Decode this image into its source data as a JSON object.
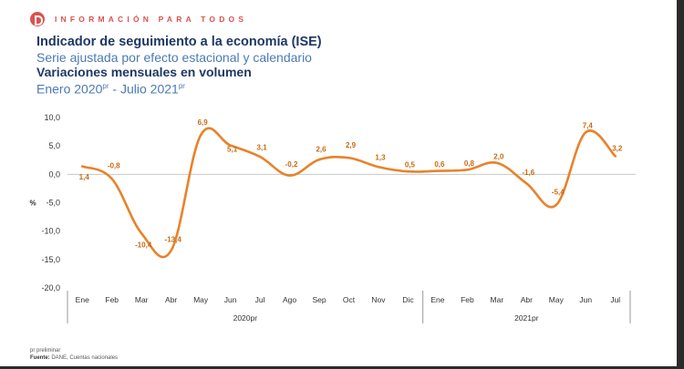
{
  "header": {
    "brand_text": "INFORMACIÓN PARA TODOS",
    "title": "Indicador de seguimiento a la economía (ISE)",
    "subtitle1": "Serie ajustada por efecto estacional y calendario",
    "subtitle2": "Variaciones mensuales en volumen",
    "period_start": "Enero 2020",
    "period_end": " - Julio 2021",
    "period_sup": "pr"
  },
  "colors": {
    "line": "#e8822a",
    "title": "#1f3864",
    "subtitle": "#4a7ab5",
    "brand": "#d9534f"
  },
  "chart_data": {
    "type": "line",
    "ylabel": "%",
    "ylim": [
      -20,
      10
    ],
    "yticks": [
      "10,0",
      "5,0",
      "0,0",
      "-5,0",
      "-10,0",
      "-15,0",
      "-20,0"
    ],
    "categories": [
      "Ene",
      "Feb",
      "Mar",
      "Abr",
      "May",
      "Jun",
      "Jul",
      "Ago",
      "Sep",
      "Oct",
      "Nov",
      "Dic",
      "Ene",
      "Feb",
      "Mar",
      "Abr",
      "May",
      "Jun",
      "Jul"
    ],
    "groups": [
      {
        "label": "2020pr",
        "count": 12
      },
      {
        "label": "2021pr",
        "count": 7
      }
    ],
    "values": [
      1.4,
      -0.8,
      -10.4,
      -13.4,
      6.9,
      5.1,
      3.1,
      -0.2,
      2.6,
      2.9,
      1.3,
      0.5,
      0.6,
      0.8,
      2.0,
      -1.6,
      -5.4,
      7.4,
      3.2
    ],
    "data_labels": [
      "1,4",
      "-0,8",
      "-10,4",
      "-13,4",
      "6,9",
      "5,1",
      "3,1",
      "-0,2",
      "2,6",
      "2,9",
      "1,3",
      "0,5",
      "0,6",
      "0,8",
      "2,0",
      "-1,6",
      "-5,4",
      "7,4",
      "3,2"
    ],
    "label_offsets": [
      -1.8,
      2.4,
      -2.0,
      2.0,
      2.3,
      -0.6,
      1.7,
      2.0,
      1.9,
      2.3,
      1.7,
      1.2,
      1.2,
      1.2,
      1.2,
      2.0,
      2.3,
      1.2,
      1.4
    ],
    "grid": false
  },
  "footer": {
    "note": "pr preliminar",
    "source_label": "Fuente:",
    "source_text": " DANE, Cuentas nacionales"
  }
}
